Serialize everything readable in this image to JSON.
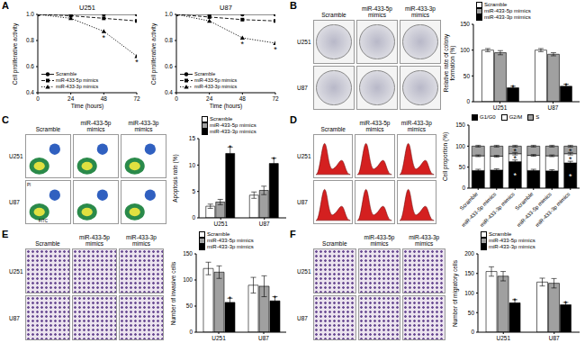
{
  "chart_data": [
    {
      "panel": "A",
      "type": "line",
      "title": "U251",
      "x_label": "Time (hours)",
      "y_label": "Cell proliferative activity",
      "x": [
        0,
        24,
        48,
        72
      ],
      "xlim": [
        0,
        72
      ],
      "xticks": [
        0,
        24,
        48,
        72
      ],
      "ylim": [
        0.4,
        1
      ],
      "yticks": [
        0.4,
        0.6,
        0.8,
        {
          "value": 1,
          "label": "1.0"
        }
      ],
      "legend": "lower left",
      "series": [
        {
          "name": "Scramble",
          "color": "#000000",
          "marker": "circle",
          "line_style": "solid",
          "values": [
            1,
            1,
            1,
            1
          ]
        },
        {
          "name": "miR-433-5p mimics",
          "color": "#000000",
          "marker": "square",
          "line_style": "dashed",
          "values": [
            1,
            0.99,
            0.97,
            0.95
          ]
        },
        {
          "name": "miR-433-3p mimics",
          "color": "#000000",
          "marker": "triangle",
          "line_style": "dotted",
          "values": [
            1,
            0.97,
            0.87,
            0.68
          ]
        }
      ],
      "annotations": [
        {
          "text": "*",
          "series": "miR-433-3p mimics",
          "x": 48
        },
        {
          "text": "*",
          "series": "miR-433-3p mimics",
          "x": 72
        }
      ]
    },
    {
      "type": "line",
      "title": "U87",
      "x_label": "Time (hours)",
      "y_label": "Cell proliferative activity",
      "x": [
        0,
        24,
        48,
        72
      ],
      "xlim": [
        0,
        72
      ],
      "xticks": [
        0,
        24,
        48,
        72
      ],
      "ylim": [
        0.4,
        1
      ],
      "yticks": [
        0.4,
        0.6,
        0.8,
        {
          "value": 1,
          "label": "1.0"
        }
      ],
      "legend": "lower left",
      "series": [
        {
          "name": "Scramble",
          "color": "#000000",
          "marker": "circle",
          "line_style": "solid",
          "values": [
            1,
            1,
            1,
            1
          ]
        },
        {
          "name": "miR-433-5p mimics",
          "color": "#000000",
          "marker": "square",
          "line_style": "dashed",
          "values": [
            1,
            0.98,
            0.96,
            0.95
          ]
        },
        {
          "name": "miR-433-3p mimics",
          "color": "#000000",
          "marker": "triangle",
          "line_style": "dotted",
          "values": [
            1,
            0.95,
            0.82,
            0.78
          ]
        }
      ],
      "annotations": [
        {
          "text": "*",
          "series": "miR-433-3p mimics",
          "x": 48
        },
        {
          "text": "*",
          "series": "miR-433-3p mimics",
          "x": 72
        }
      ]
    },
    {
      "panel": "B",
      "type": "bar",
      "image_columns": [
        "Scramble",
        "miR-433-5p mimics",
        "miR-433-3p mimics"
      ],
      "image_rows": [
        "U251",
        "U87"
      ],
      "y_label": "Relative rate of colony formation (%)",
      "categories": [
        "U251",
        "U87"
      ],
      "ylim": [
        0,
        150
      ],
      "yticks": [
        0,
        50,
        100,
        150
      ],
      "legend": "top",
      "series": [
        {
          "name": "Scramble",
          "color": "#ffffff",
          "values": [
            100,
            100
          ],
          "errors": [
            3,
            3
          ]
        },
        {
          "name": "miR-433-5p mimics",
          "color": "#a0a0a0",
          "values": [
            95,
            92
          ],
          "errors": [
            4,
            3
          ]
        },
        {
          "name": "miR-433-3p mimics",
          "color": "#000000",
          "values": [
            27,
            30
          ],
          "errors": [
            3,
            4
          ]
        }
      ],
      "annotations": [
        {
          "text": "*",
          "category": "U251",
          "series": "miR-433-3p mimics"
        },
        {
          "text": "*",
          "category": "U87",
          "series": "miR-433-3p mimics"
        }
      ]
    },
    {
      "panel": "C",
      "type": "bar",
      "image_columns": [
        "Scramble",
        "miR-433-5p mimics",
        "miR-433-3p mimics"
      ],
      "image_rows": [
        "U251",
        "U87"
      ],
      "image_x_label": "FITC",
      "image_y_label": "PI",
      "y_label": "Apoptosis rate (%)",
      "categories": [
        "U251",
        "U87"
      ],
      "ylim": [
        0,
        15
      ],
      "yticks": [
        0,
        5,
        10,
        15
      ],
      "legend": "top",
      "series": [
        {
          "name": "Scramble",
          "color": "#ffffff",
          "values": [
            2.2,
            4.3
          ],
          "errors": [
            0.4,
            0.6
          ]
        },
        {
          "name": "miR-433-5p mimics",
          "color": "#a0a0a0",
          "values": [
            3.0,
            5.2
          ],
          "errors": [
            0.5,
            0.8
          ]
        },
        {
          "name": "miR-433-3p mimics",
          "color": "#000000",
          "values": [
            12.2,
            10.3
          ],
          "errors": [
            1.2,
            1.0
          ]
        }
      ],
      "annotations": [
        {
          "text": "*",
          "category": "U251",
          "series": "miR-433-3p mimics"
        },
        {
          "text": "*",
          "category": "U87",
          "series": "miR-433-3p mimics"
        }
      ]
    },
    {
      "panel": "D",
      "type": "bar",
      "stacked": true,
      "image_columns": [
        "Scramble",
        "miR-433-5p mimics",
        "miR-433-3p mimics"
      ],
      "image_rows": [
        "U251",
        "U87"
      ],
      "y_label": "Cell proportion (%)",
      "categories": [
        "Scramble",
        "miR-433-5p mimics",
        "miR-433-3p mimics",
        "Scramble",
        "miR-433-5p mimics",
        "miR-433-3p mimics"
      ],
      "ylim": [
        0,
        150
      ],
      "yticks": [
        0,
        50,
        100,
        150
      ],
      "legend": "top",
      "series": [
        {
          "name": "G1/G0",
          "color": "#000000",
          "values": [
            42,
            43,
            63,
            42,
            41,
            60
          ],
          "errors": [
            3,
            3,
            4,
            3,
            3,
            4
          ]
        },
        {
          "name": "G2/M",
          "color": "#ffffff",
          "values": [
            35,
            33,
            19,
            36,
            36,
            22
          ],
          "errors": [
            2,
            2,
            3,
            2,
            2,
            3
          ]
        },
        {
          "name": "S",
          "color": "#a0a0a0",
          "values": [
            23,
            24,
            18,
            22,
            23,
            18
          ],
          "errors": [
            2,
            2,
            2,
            2,
            2,
            2
          ]
        }
      ],
      "annotations": [
        {
          "text": "*",
          "index": 2,
          "series": "G1/G0"
        },
        {
          "text": "*",
          "index": 2,
          "series": "G2/M"
        },
        {
          "text": "*",
          "index": 2,
          "series": "S"
        },
        {
          "text": "*",
          "index": 5,
          "series": "G1/G0"
        },
        {
          "text": "*",
          "index": 5,
          "series": "G2/M"
        },
        {
          "text": "*",
          "index": 5,
          "series": "S"
        }
      ]
    },
    {
      "panel": "E",
      "type": "bar",
      "image_columns": [
        "Scramble",
        "miR-433-5p mimics",
        "miR-433-3p mimics"
      ],
      "image_rows": [
        "U251",
        "U87"
      ],
      "y_label": "Number of invasive cells",
      "categories": [
        "U251",
        "U87"
      ],
      "ylim": [
        0,
        150
      ],
      "yticks": [
        0,
        50,
        100,
        150
      ],
      "legend": "top",
      "series": [
        {
          "name": "Scramble",
          "color": "#ffffff",
          "values": [
            122,
            90
          ],
          "errors": [
            12,
            15
          ]
        },
        {
          "name": "miR-433-5p mimics",
          "color": "#a0a0a0",
          "values": [
            115,
            88
          ],
          "errors": [
            12,
            20
          ]
        },
        {
          "name": "miR-433-3p mimics",
          "color": "#000000",
          "values": [
            57,
            60
          ],
          "errors": [
            8,
            8
          ]
        }
      ],
      "annotations": [
        {
          "text": "*",
          "category": "U251",
          "series": "miR-433-3p mimics"
        },
        {
          "text": "*",
          "category": "U87",
          "series": "miR-433-3p mimics"
        }
      ]
    },
    {
      "panel": "F",
      "type": "bar",
      "image_columns": [
        "Scramble",
        "miR-433-5p mimics",
        "miR-433-3p mimics"
      ],
      "image_rows": [
        "U251",
        "U87"
      ],
      "y_label": "Number of migratory cells",
      "categories": [
        "U251",
        "U87"
      ],
      "ylim": [
        0,
        200
      ],
      "yticks": [
        0,
        50,
        100,
        150,
        200
      ],
      "legend": "top",
      "series": [
        {
          "name": "Scramble",
          "color": "#ffffff",
          "values": [
            155,
            128
          ],
          "errors": [
            12,
            10
          ]
        },
        {
          "name": "miR-433-5p mimics",
          "color": "#a0a0a0",
          "values": [
            143,
            125
          ],
          "errors": [
            12,
            12
          ]
        },
        {
          "name": "miR-433-3p mimics",
          "color": "#000000",
          "values": [
            75,
            70
          ],
          "errors": [
            8,
            6
          ]
        }
      ],
      "annotations": [
        {
          "text": "*",
          "category": "U251",
          "series": "miR-433-3p mimics"
        },
        {
          "text": "*",
          "category": "U87",
          "series": "miR-433-3p mimics"
        }
      ]
    }
  ]
}
